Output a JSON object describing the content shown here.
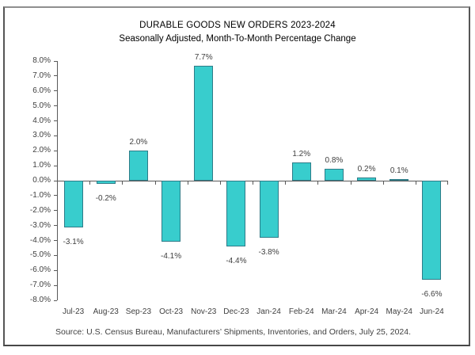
{
  "figure": {
    "background": "#ffffff",
    "frame_border_color": "#8f8f8f"
  },
  "chart_data": {
    "type": "bar",
    "title": "DURABLE GOODS NEW ORDERS 2023-2024",
    "subtitle": "Seasonally Adjusted,  Month-To-Month Percentage Change",
    "categories": [
      "Jul-23",
      "Aug-23",
      "Sep-23",
      "Oct-23",
      "Nov-23",
      "Dec-23",
      "Jan-24",
      "Feb-24",
      "Mar-24",
      "Apr-24",
      "May-24",
      "Jun-24"
    ],
    "values": [
      -3.1,
      -0.2,
      2.0,
      -4.1,
      7.7,
      -4.4,
      -3.8,
      1.2,
      0.8,
      0.2,
      0.1,
      -6.6
    ],
    "data_labels": [
      "-3.1%",
      "-0.2%",
      "2.0%",
      "-4.1%",
      "7.7%",
      "-4.4%",
      "-3.8%",
      "1.2%",
      "0.8%",
      "0.2%",
      "0.1%",
      "-6.6%"
    ],
    "xlabel": "",
    "ylabel": "",
    "ylim": [
      -8.0,
      8.0
    ],
    "ytick_step": 1.0,
    "ytick_labels": [
      "8.0%",
      "7.0%",
      "6.0%",
      "5.0%",
      "4.0%",
      "3.0%",
      "2.0%",
      "1.0%",
      "0.0%",
      "-1.0%",
      "-2.0%",
      "-3.0%",
      "-4.0%",
      "-5.0%",
      "-6.0%",
      "-7.0%",
      "-8.0%"
    ],
    "grid": false,
    "legend": "none",
    "bar_color": "#38CDCD",
    "bar_border_color": "#2E7C88",
    "axis_color": "#595959",
    "label_color": "#3f3f3f",
    "source_note": "Source: U.S. Census Bureau, Manufacturers’ Shipments, Inventories, and Orders, July 25, 2024."
  }
}
